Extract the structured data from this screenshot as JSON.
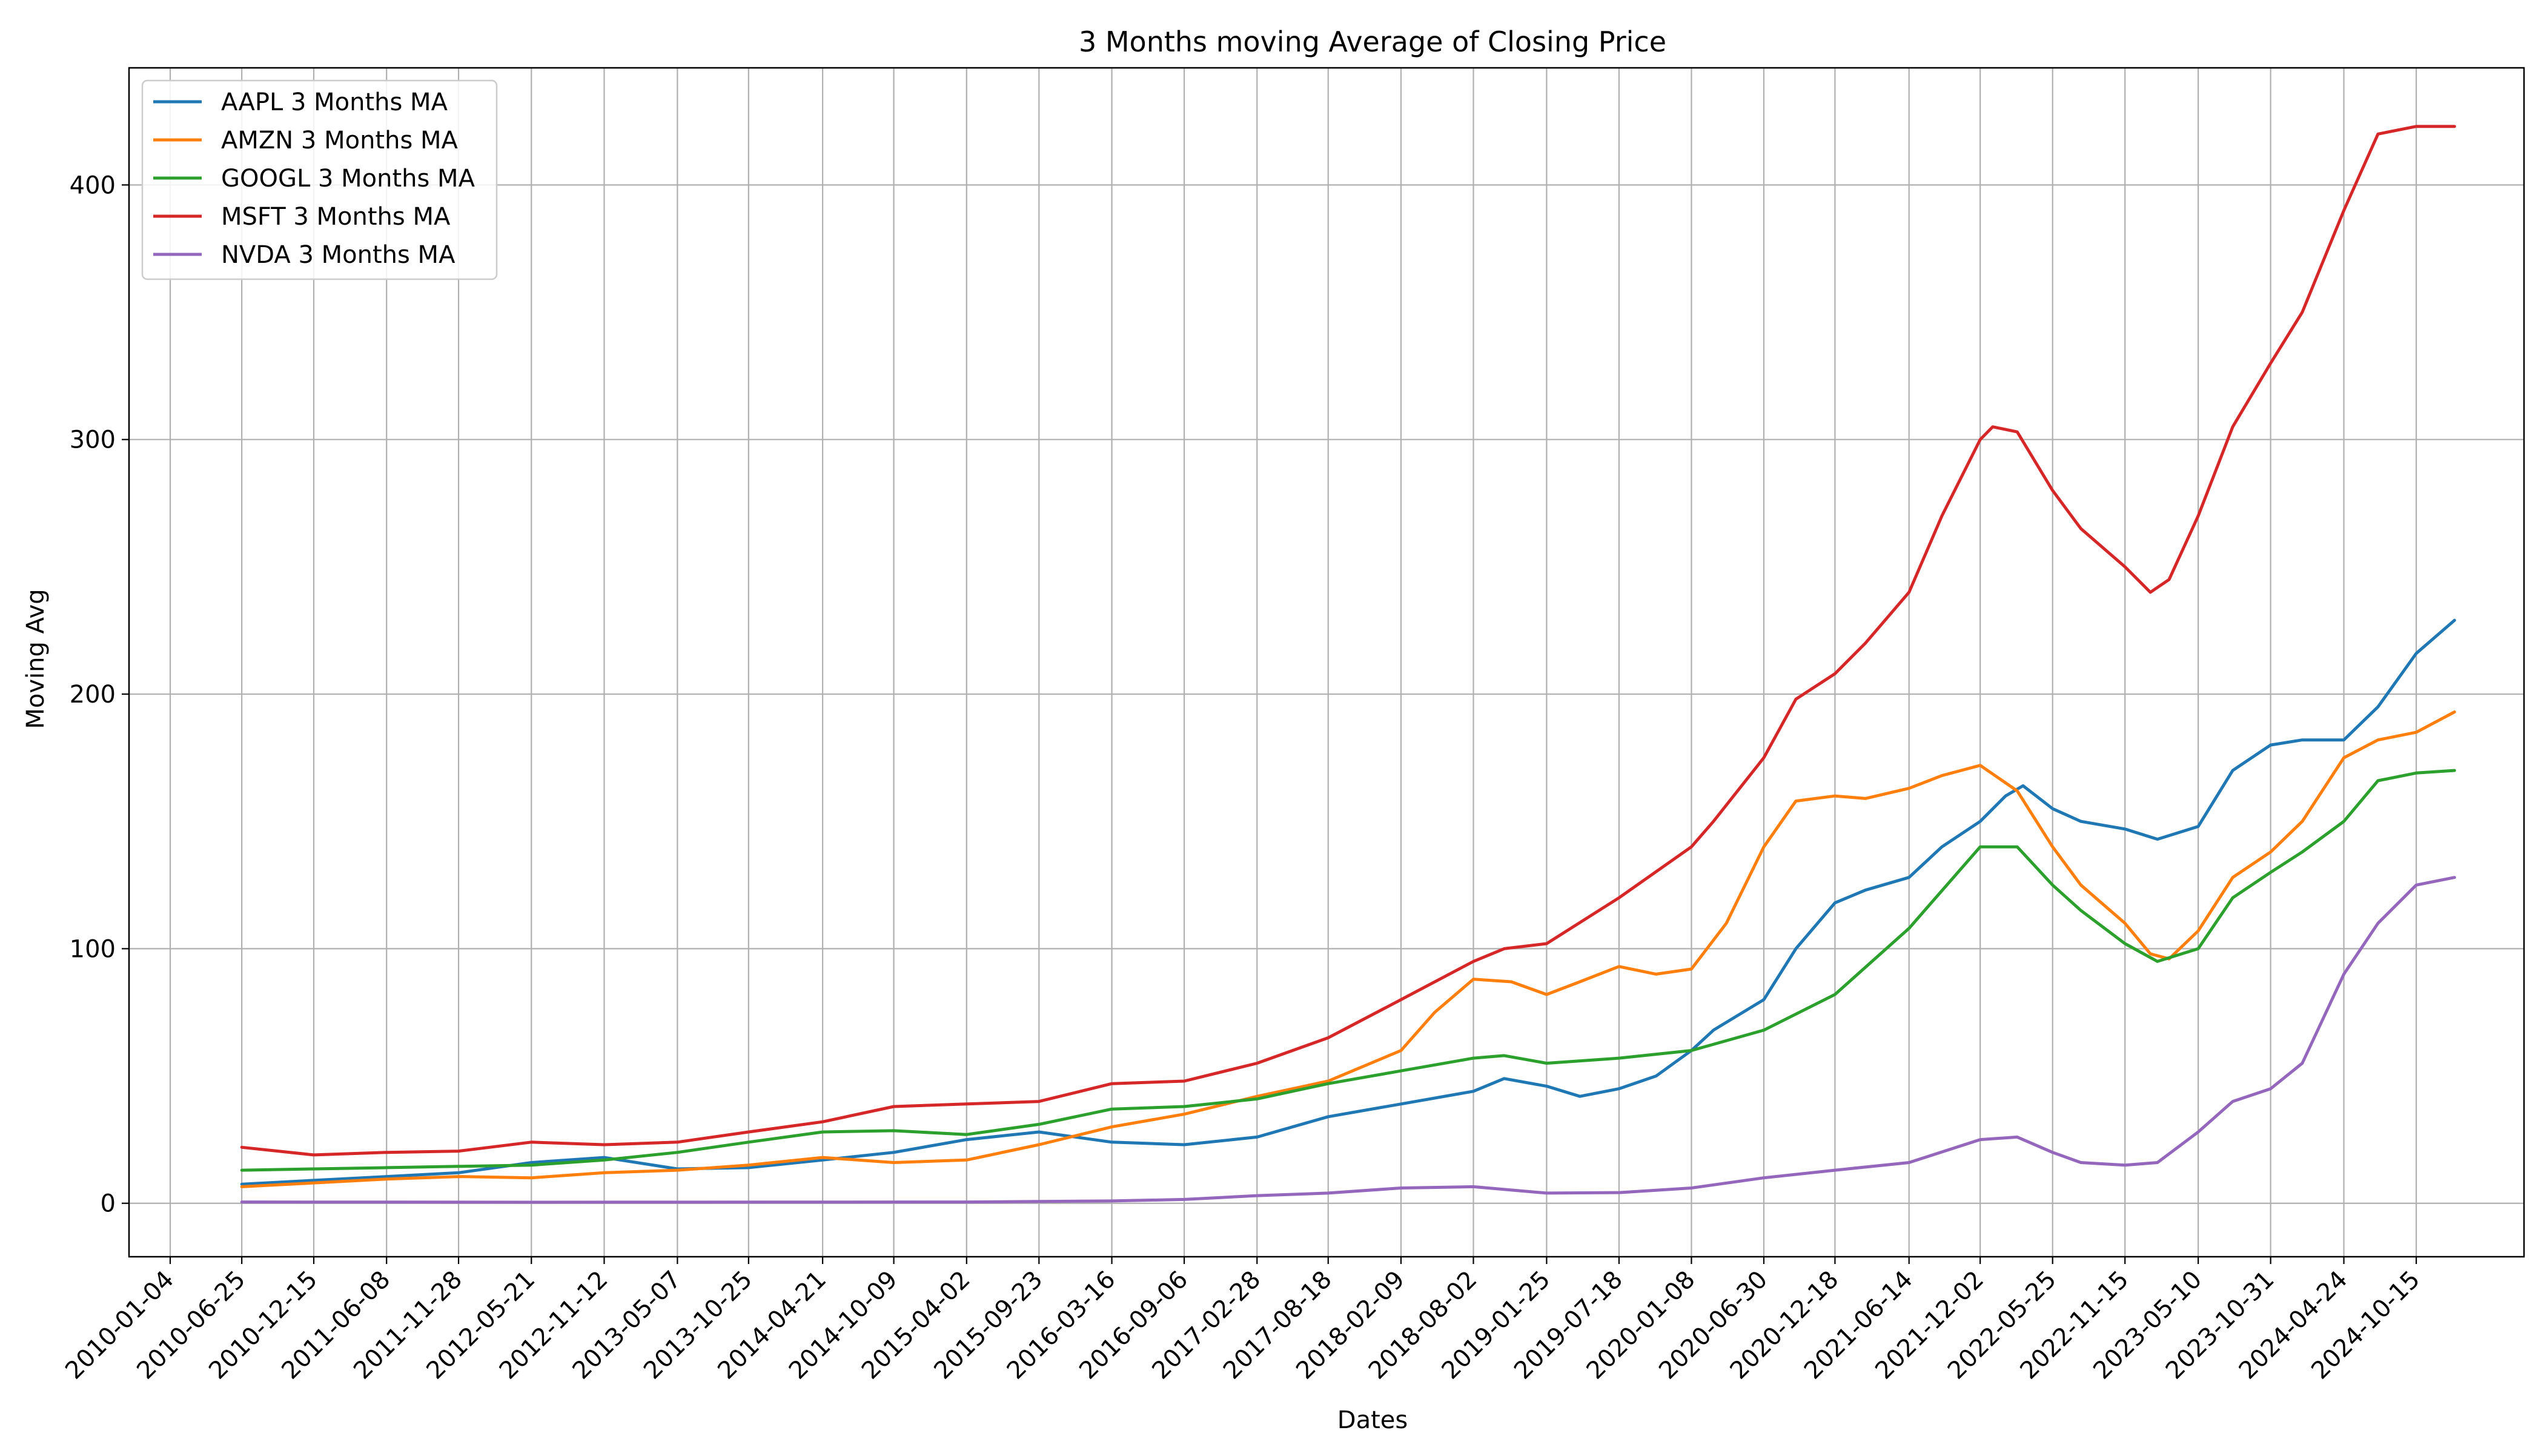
{
  "chart_data": {
    "type": "line",
    "title": "3 Months moving Average of Closing Price",
    "xlabel": "Dates",
    "ylabel": "Moving Avg",
    "x_ticks": [
      "2010-01-04",
      "2010-06-25",
      "2010-12-15",
      "2011-06-08",
      "2011-11-28",
      "2012-05-21",
      "2012-11-12",
      "2013-05-07",
      "2013-10-25",
      "2014-04-21",
      "2014-10-09",
      "2015-04-02",
      "2015-09-23",
      "2016-03-16",
      "2016-09-06",
      "2017-02-28",
      "2017-08-18",
      "2018-02-09",
      "2018-08-02",
      "2019-01-25",
      "2019-07-18",
      "2020-01-08",
      "2020-06-30",
      "2020-12-18",
      "2021-06-14",
      "2021-12-02",
      "2022-05-25",
      "2022-11-15",
      "2023-05-10",
      "2023-10-31",
      "2024-04-24",
      "2024-10-15"
    ],
    "y_ticks": [
      0,
      100,
      200,
      300,
      400
    ],
    "ylim": [
      -21,
      446
    ],
    "grid": true,
    "legend_position": "top-left",
    "colors": {
      "AAPL": "#1f77b4",
      "AMZN": "#ff7f0e",
      "GOOGL": "#2ca02c",
      "MSFT": "#d62728",
      "NVDA": "#9467bd"
    },
    "series": [
      {
        "name": "AAPL 3 Months MA",
        "color": "#1f77b4",
        "points": [
          [
            "2010-06-25",
            7.5
          ],
          [
            "2010-12-15",
            9
          ],
          [
            "2011-06-08",
            10.5
          ],
          [
            "2011-11-28",
            12
          ],
          [
            "2012-05-21",
            16
          ],
          [
            "2012-11-12",
            18
          ],
          [
            "2013-05-07",
            13.5
          ],
          [
            "2013-10-25",
            14
          ],
          [
            "2014-04-21",
            17
          ],
          [
            "2014-10-09",
            20
          ],
          [
            "2015-04-02",
            25
          ],
          [
            "2015-09-23",
            28
          ],
          [
            "2016-03-16",
            24
          ],
          [
            "2016-09-06",
            23
          ],
          [
            "2017-02-28",
            26
          ],
          [
            "2017-08-18",
            34
          ],
          [
            "2018-02-09",
            39
          ],
          [
            "2018-08-02",
            44
          ],
          [
            "2018-10-15",
            49
          ],
          [
            "2019-01-25",
            46
          ],
          [
            "2019-04-15",
            42
          ],
          [
            "2019-07-18",
            45
          ],
          [
            "2019-10-15",
            50
          ],
          [
            "2020-01-08",
            60
          ],
          [
            "2020-03-01",
            68
          ],
          [
            "2020-06-30",
            80
          ],
          [
            "2020-09-15",
            100
          ],
          [
            "2020-12-18",
            118
          ],
          [
            "2021-03-01",
            123
          ],
          [
            "2021-06-14",
            128
          ],
          [
            "2021-09-01",
            140
          ],
          [
            "2021-12-02",
            150
          ],
          [
            "2022-02-01",
            160
          ],
          [
            "2022-03-15",
            164
          ],
          [
            "2022-05-25",
            155
          ],
          [
            "2022-08-01",
            150
          ],
          [
            "2022-11-15",
            147
          ],
          [
            "2023-02-01",
            143
          ],
          [
            "2023-05-10",
            148
          ],
          [
            "2023-08-01",
            170
          ],
          [
            "2023-10-31",
            180
          ],
          [
            "2024-01-15",
            182
          ],
          [
            "2024-04-24",
            182
          ],
          [
            "2024-07-15",
            195
          ],
          [
            "2024-10-15",
            216
          ],
          [
            "2025-01-15",
            229
          ]
        ]
      },
      {
        "name": "AMZN 3 Months MA",
        "color": "#ff7f0e",
        "points": [
          [
            "2010-06-25",
            6.5
          ],
          [
            "2010-12-15",
            8
          ],
          [
            "2011-06-08",
            9.5
          ],
          [
            "2011-11-28",
            10.5
          ],
          [
            "2012-05-21",
            10
          ],
          [
            "2012-11-12",
            12
          ],
          [
            "2013-05-07",
            13
          ],
          [
            "2013-10-25",
            15
          ],
          [
            "2014-04-21",
            18
          ],
          [
            "2014-10-09",
            16
          ],
          [
            "2015-04-02",
            17
          ],
          [
            "2015-09-23",
            23
          ],
          [
            "2016-03-16",
            30
          ],
          [
            "2016-09-06",
            35
          ],
          [
            "2017-02-28",
            42
          ],
          [
            "2017-08-18",
            48
          ],
          [
            "2018-02-09",
            60
          ],
          [
            "2018-05-01",
            75
          ],
          [
            "2018-08-02",
            88
          ],
          [
            "2018-11-01",
            87
          ],
          [
            "2019-01-25",
            82
          ],
          [
            "2019-04-15",
            87
          ],
          [
            "2019-07-18",
            93
          ],
          [
            "2019-10-15",
            90
          ],
          [
            "2020-01-08",
            92
          ],
          [
            "2020-04-01",
            110
          ],
          [
            "2020-06-30",
            140
          ],
          [
            "2020-09-15",
            158
          ],
          [
            "2020-12-18",
            160
          ],
          [
            "2021-03-01",
            159
          ],
          [
            "2021-06-14",
            163
          ],
          [
            "2021-09-01",
            168
          ],
          [
            "2021-12-02",
            172
          ],
          [
            "2022-03-01",
            162
          ],
          [
            "2022-05-25",
            140
          ],
          [
            "2022-08-01",
            125
          ],
          [
            "2022-11-15",
            110
          ],
          [
            "2023-01-15",
            98
          ],
          [
            "2023-03-01",
            96
          ],
          [
            "2023-05-10",
            107
          ],
          [
            "2023-08-01",
            128
          ],
          [
            "2023-10-31",
            138
          ],
          [
            "2024-01-15",
            150
          ],
          [
            "2024-04-24",
            175
          ],
          [
            "2024-07-15",
            182
          ],
          [
            "2024-10-15",
            185
          ],
          [
            "2025-01-15",
            193
          ]
        ]
      },
      {
        "name": "GOOGL 3 Months MA",
        "color": "#2ca02c",
        "points": [
          [
            "2010-06-25",
            13
          ],
          [
            "2010-12-15",
            13.5
          ],
          [
            "2011-06-08",
            14
          ],
          [
            "2011-11-28",
            14.5
          ],
          [
            "2012-05-21",
            15
          ],
          [
            "2012-11-12",
            17
          ],
          [
            "2013-05-07",
            20
          ],
          [
            "2013-10-25",
            24
          ],
          [
            "2014-04-21",
            28
          ],
          [
            "2014-10-09",
            28.5
          ],
          [
            "2015-04-02",
            27
          ],
          [
            "2015-09-23",
            31
          ],
          [
            "2016-03-16",
            37
          ],
          [
            "2016-09-06",
            38
          ],
          [
            "2017-02-28",
            41
          ],
          [
            "2017-08-18",
            47
          ],
          [
            "2018-02-09",
            52
          ],
          [
            "2018-08-02",
            57
          ],
          [
            "2018-10-15",
            58
          ],
          [
            "2019-01-25",
            55
          ],
          [
            "2019-07-18",
            57
          ],
          [
            "2020-01-08",
            60
          ],
          [
            "2020-06-30",
            68
          ],
          [
            "2020-12-18",
            82
          ],
          [
            "2021-06-14",
            108
          ],
          [
            "2021-12-02",
            140
          ],
          [
            "2022-03-01",
            140
          ],
          [
            "2022-05-25",
            125
          ],
          [
            "2022-08-01",
            115
          ],
          [
            "2022-11-15",
            102
          ],
          [
            "2023-02-01",
            95
          ],
          [
            "2023-05-10",
            100
          ],
          [
            "2023-08-01",
            120
          ],
          [
            "2023-10-31",
            130
          ],
          [
            "2024-01-15",
            138
          ],
          [
            "2024-04-24",
            150
          ],
          [
            "2024-07-15",
            166
          ],
          [
            "2024-10-15",
            169
          ],
          [
            "2025-01-15",
            170
          ]
        ]
      },
      {
        "name": "MSFT 3 Months MA",
        "color": "#d62728",
        "points": [
          [
            "2010-06-25",
            22
          ],
          [
            "2010-12-15",
            19
          ],
          [
            "2011-06-08",
            20
          ],
          [
            "2011-11-28",
            20.5
          ],
          [
            "2012-05-21",
            24
          ],
          [
            "2012-11-12",
            23
          ],
          [
            "2013-05-07",
            24
          ],
          [
            "2013-10-25",
            28
          ],
          [
            "2014-04-21",
            32
          ],
          [
            "2014-10-09",
            38
          ],
          [
            "2015-04-02",
            39
          ],
          [
            "2015-09-23",
            40
          ],
          [
            "2016-03-16",
            47
          ],
          [
            "2016-09-06",
            48
          ],
          [
            "2017-02-28",
            55
          ],
          [
            "2017-08-18",
            65
          ],
          [
            "2018-02-09",
            80
          ],
          [
            "2018-08-02",
            95
          ],
          [
            "2018-10-15",
            100
          ],
          [
            "2019-01-25",
            102
          ],
          [
            "2019-07-18",
            120
          ],
          [
            "2020-01-08",
            140
          ],
          [
            "2020-03-01",
            150
          ],
          [
            "2020-06-30",
            175
          ],
          [
            "2020-09-15",
            198
          ],
          [
            "2020-12-18",
            208
          ],
          [
            "2021-03-01",
            220
          ],
          [
            "2021-06-14",
            240
          ],
          [
            "2021-09-01",
            270
          ],
          [
            "2021-12-02",
            300
          ],
          [
            "2022-01-01",
            305
          ],
          [
            "2022-03-01",
            303
          ],
          [
            "2022-05-25",
            280
          ],
          [
            "2022-08-01",
            265
          ],
          [
            "2022-11-15",
            250
          ],
          [
            "2023-01-15",
            240
          ],
          [
            "2023-03-01",
            245
          ],
          [
            "2023-05-10",
            270
          ],
          [
            "2023-08-01",
            305
          ],
          [
            "2023-10-31",
            330
          ],
          [
            "2024-01-15",
            350
          ],
          [
            "2024-04-24",
            390
          ],
          [
            "2024-07-15",
            420
          ],
          [
            "2024-10-15",
            423
          ],
          [
            "2025-01-15",
            423
          ]
        ]
      },
      {
        "name": "NVDA 3 Months MA",
        "color": "#9467bd",
        "points": [
          [
            "2010-06-25",
            0.5
          ],
          [
            "2012-05-21",
            0.4
          ],
          [
            "2015-04-02",
            0.5
          ],
          [
            "2016-03-16",
            0.9
          ],
          [
            "2016-09-06",
            1.5
          ],
          [
            "2017-02-28",
            3
          ],
          [
            "2017-08-18",
            4
          ],
          [
            "2018-02-09",
            6
          ],
          [
            "2018-08-02",
            6.5
          ],
          [
            "2019-01-25",
            4
          ],
          [
            "2019-07-18",
            4.2
          ],
          [
            "2020-01-08",
            6
          ],
          [
            "2020-06-30",
            10
          ],
          [
            "2020-12-18",
            13
          ],
          [
            "2021-06-14",
            16
          ],
          [
            "2021-12-02",
            25
          ],
          [
            "2022-03-01",
            26
          ],
          [
            "2022-05-25",
            20
          ],
          [
            "2022-08-01",
            16
          ],
          [
            "2022-11-15",
            15
          ],
          [
            "2023-02-01",
            16
          ],
          [
            "2023-05-10",
            28
          ],
          [
            "2023-08-01",
            40
          ],
          [
            "2023-10-31",
            45
          ],
          [
            "2024-01-15",
            55
          ],
          [
            "2024-04-24",
            90
          ],
          [
            "2024-07-15",
            110
          ],
          [
            "2024-10-15",
            125
          ],
          [
            "2025-01-15",
            128
          ]
        ]
      }
    ]
  }
}
